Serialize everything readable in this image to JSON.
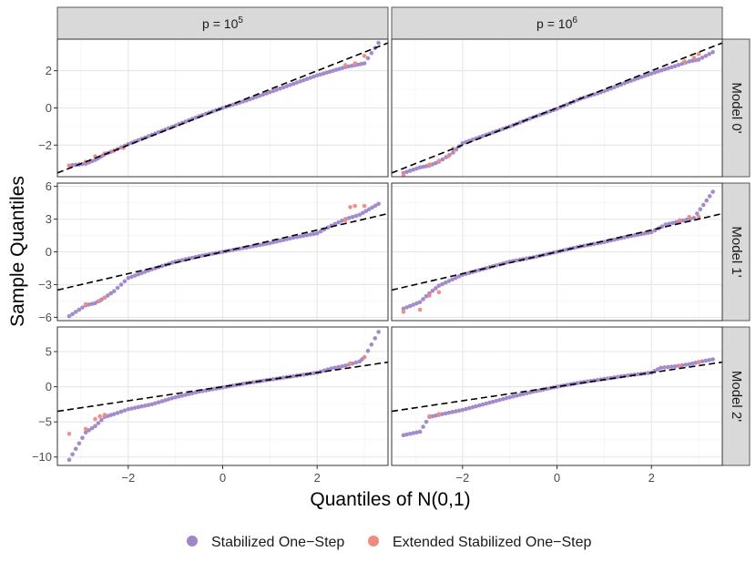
{
  "chart_data": {
    "type": "scatter",
    "subtype": "faceted QQ plot",
    "xlabel": "Quantiles of N(0,1)",
    "ylabel": "Sample Quantiles",
    "xlim": [
      -3.5,
      3.5
    ],
    "x_ticks": [
      -2,
      0,
      2
    ],
    "x_tick_labels": [
      "−2",
      "0",
      "2"
    ],
    "columns": [
      {
        "id": "p5",
        "label_base": "p = 10",
        "label_exp": "5"
      },
      {
        "id": "p6",
        "label_base": "p = 10",
        "label_exp": "6"
      }
    ],
    "rows": [
      {
        "id": "m0",
        "label": "Model 0'",
        "ylim": [
          -3.7,
          3.7
        ],
        "y_ticks": [
          -2,
          0,
          2
        ],
        "y_tick_labels": [
          "−2",
          "0",
          "2"
        ]
      },
      {
        "id": "m1",
        "label": "Model 1'",
        "ylim": [
          -6.3,
          6.3
        ],
        "y_ticks": [
          -6,
          -3,
          0,
          3,
          6
        ],
        "y_tick_labels": [
          "−6",
          "−3",
          "0",
          "3",
          "6"
        ]
      },
      {
        "id": "m2",
        "label": "Model 2'",
        "ylim": [
          -11.2,
          8.5
        ],
        "y_ticks": [
          -10,
          -5,
          0,
          5
        ],
        "y_tick_labels": [
          "−10",
          "−5",
          "0",
          "5"
        ]
      }
    ],
    "reference_line": {
      "style": "dashed",
      "color": "#000000",
      "intercept": 0,
      "slope": 1
    },
    "series": [
      {
        "name": "Stabilized One−Step",
        "color": "#9f86c9"
      },
      {
        "name": "Extended Stabilized One−Step",
        "color": "#f08a80"
      }
    ],
    "legend_position": "bottom",
    "panels": [
      {
        "row": "m0",
        "col": "p5",
        "series_points": [
          [
            [
              -3.25,
              -3.1
            ],
            [
              -2.9,
              -3.0
            ],
            [
              -2.7,
              -2.8
            ],
            [
              -2.6,
              -2.65
            ],
            [
              -2.5,
              -2.5
            ],
            [
              -2.3,
              -2.3
            ],
            [
              -2.0,
              -1.95
            ],
            [
              -1.5,
              -1.45
            ],
            [
              -1.0,
              -0.95
            ],
            [
              -0.5,
              -0.45
            ],
            [
              0,
              0
            ],
            [
              0.5,
              0.4
            ],
            [
              1.0,
              0.85
            ],
            [
              1.5,
              1.3
            ],
            [
              2.0,
              1.75
            ],
            [
              2.4,
              2.05
            ],
            [
              2.6,
              2.2
            ],
            [
              2.8,
              2.3
            ],
            [
              3.0,
              2.4
            ],
            [
              3.3,
              3.5
            ]
          ],
          [
            [
              -3.25,
              -3.1
            ],
            [
              -2.9,
              -2.9
            ],
            [
              -2.7,
              -2.6
            ],
            [
              -2.5,
              -2.45
            ],
            [
              -2.3,
              -2.3
            ],
            [
              -2.1,
              -2.15
            ],
            [
              2.6,
              2.3
            ],
            [
              2.8,
              2.4
            ],
            [
              3.0,
              2.8
            ]
          ]
        ]
      },
      {
        "row": "m0",
        "col": "p6",
        "series_points": [
          [
            [
              -3.25,
              -3.5
            ],
            [
              -2.9,
              -3.2
            ],
            [
              -2.7,
              -3.1
            ],
            [
              -2.5,
              -2.9
            ],
            [
              -2.2,
              -2.4
            ],
            [
              -2.0,
              -1.9
            ],
            [
              -1.5,
              -1.45
            ],
            [
              -1.0,
              -1.0
            ],
            [
              -0.5,
              -0.5
            ],
            [
              0,
              -0.05
            ],
            [
              0.5,
              0.5
            ],
            [
              1.0,
              0.9
            ],
            [
              1.5,
              1.4
            ],
            [
              2.0,
              1.85
            ],
            [
              2.5,
              2.25
            ],
            [
              2.8,
              2.5
            ],
            [
              3.0,
              2.6
            ],
            [
              3.3,
              3.0
            ]
          ],
          [
            [
              -3.25,
              -3.6
            ],
            [
              -2.7,
              -3.05
            ],
            [
              -2.5,
              -2.85
            ],
            [
              -2.3,
              -2.6
            ],
            [
              -2.2,
              -2.2
            ],
            [
              2.7,
              2.5
            ],
            [
              2.9,
              2.7
            ],
            [
              3.0,
              2.9
            ]
          ]
        ]
      },
      {
        "row": "m1",
        "col": "p5",
        "series_points": [
          [
            [
              -3.25,
              -5.9
            ],
            [
              -2.9,
              -4.9
            ],
            [
              -2.7,
              -4.7
            ],
            [
              -2.5,
              -4.2
            ],
            [
              -2.3,
              -3.6
            ],
            [
              -2.0,
              -2.4
            ],
            [
              -1.5,
              -1.6
            ],
            [
              -1.0,
              -0.9
            ],
            [
              -0.5,
              -0.4
            ],
            [
              0,
              0
            ],
            [
              0.5,
              0.4
            ],
            [
              1.0,
              0.8
            ],
            [
              1.5,
              1.3
            ],
            [
              2.0,
              1.7
            ],
            [
              2.3,
              2.4
            ],
            [
              2.6,
              3.0
            ],
            [
              2.9,
              3.4
            ],
            [
              3.3,
              4.4
            ]
          ],
          [
            [
              -2.9,
              -4.8
            ],
            [
              -2.6,
              -4.5
            ],
            [
              -2.5,
              -4.2
            ],
            [
              2.6,
              2.9
            ],
            [
              2.7,
              4.1
            ],
            [
              2.8,
              4.2
            ],
            [
              3.0,
              4.2
            ]
          ]
        ]
      },
      {
        "row": "m1",
        "col": "p6",
        "series_points": [
          [
            [
              -3.25,
              -5.2
            ],
            [
              -2.9,
              -4.6
            ],
            [
              -2.7,
              -3.8
            ],
            [
              -2.5,
              -3.1
            ],
            [
              -2.0,
              -2.1
            ],
            [
              -1.5,
              -1.5
            ],
            [
              -1.0,
              -0.9
            ],
            [
              -0.5,
              -0.5
            ],
            [
              0,
              0
            ],
            [
              0.5,
              0.5
            ],
            [
              1.0,
              0.9
            ],
            [
              1.5,
              1.4
            ],
            [
              2.0,
              1.8
            ],
            [
              2.3,
              2.5
            ],
            [
              2.6,
              2.8
            ],
            [
              2.9,
              3.1
            ],
            [
              3.3,
              5.5
            ]
          ],
          [
            [
              -3.25,
              -5.5
            ],
            [
              -2.9,
              -5.3
            ],
            [
              -2.7,
              -4.0
            ],
            [
              -2.5,
              -3.7
            ],
            [
              2.6,
              2.9
            ],
            [
              2.8,
              3.2
            ],
            [
              3.0,
              3.2
            ]
          ]
        ]
      },
      {
        "row": "m2",
        "col": "p5",
        "series_points": [
          [
            [
              -3.25,
              -10.4
            ],
            [
              -2.9,
              -6.5
            ],
            [
              -2.7,
              -5.6
            ],
            [
              -2.5,
              -4.3
            ],
            [
              -2.3,
              -3.9
            ],
            [
              -2.0,
              -3.2
            ],
            [
              -1.5,
              -2.5
            ],
            [
              -1.0,
              -1.5
            ],
            [
              -0.5,
              -0.7
            ],
            [
              0,
              -0.1
            ],
            [
              0.5,
              0.5
            ],
            [
              1.0,
              1.0
            ],
            [
              1.5,
              1.5
            ],
            [
              2.0,
              2.0
            ],
            [
              2.3,
              2.6
            ],
            [
              2.6,
              3.0
            ],
            [
              2.9,
              3.6
            ],
            [
              3.0,
              4.2
            ],
            [
              3.3,
              7.8
            ]
          ],
          [
            [
              -3.25,
              -6.7
            ],
            [
              -2.9,
              -6.0
            ],
            [
              -2.7,
              -4.6
            ],
            [
              -2.6,
              -4.2
            ],
            [
              -2.5,
              -4.0
            ],
            [
              2.7,
              3.3
            ],
            [
              3.0,
              4.2
            ]
          ]
        ]
      },
      {
        "row": "m2",
        "col": "p6",
        "series_points": [
          [
            [
              -3.25,
              -6.9
            ],
            [
              -2.9,
              -6.4
            ],
            [
              -2.7,
              -4.3
            ],
            [
              -2.5,
              -4.0
            ],
            [
              -2.0,
              -3.3
            ],
            [
              -1.5,
              -2.4
            ],
            [
              -1.0,
              -1.5
            ],
            [
              -0.5,
              -0.7
            ],
            [
              0,
              0
            ],
            [
              0.5,
              0.6
            ],
            [
              1.0,
              1.1
            ],
            [
              1.5,
              1.6
            ],
            [
              2.0,
              2.0
            ],
            [
              2.2,
              2.7
            ],
            [
              2.5,
              2.9
            ],
            [
              2.8,
              3.2
            ],
            [
              3.0,
              3.5
            ],
            [
              3.3,
              3.9
            ]
          ],
          [
            [
              -2.7,
              -4.2
            ],
            [
              -2.5,
              -3.9
            ],
            [
              2.6,
              2.9
            ],
            [
              3.0,
              3.5
            ]
          ]
        ]
      }
    ]
  }
}
